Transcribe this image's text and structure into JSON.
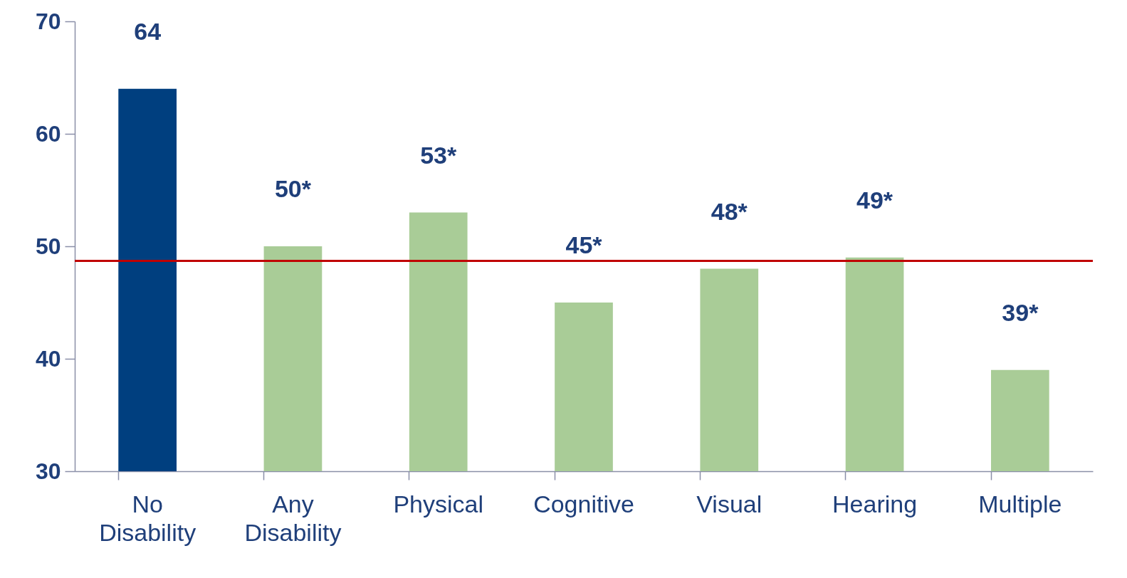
{
  "chart_data": {
    "type": "bar",
    "categories": [
      "No Disability",
      "Any Disability",
      "Physical",
      "Cognitive",
      "Visual",
      "Hearing",
      "Multiple"
    ],
    "values": [
      64,
      50,
      53,
      45,
      48,
      49,
      39
    ],
    "value_labels": [
      "64",
      "50*",
      "53*",
      "45*",
      "48*",
      "49*",
      "39*"
    ],
    "colors": [
      "#003f7f",
      "#a9cc97",
      "#a9cc97",
      "#a9cc97",
      "#a9cc97",
      "#a9cc97",
      "#a9cc97"
    ],
    "ylim": [
      30,
      70
    ],
    "yticks": [
      30,
      40,
      50,
      60,
      70
    ],
    "grid": false,
    "legend": false,
    "ref_lines": [
      {
        "axis": "y",
        "value": 48.7,
        "color": "#c00000"
      }
    ]
  }
}
